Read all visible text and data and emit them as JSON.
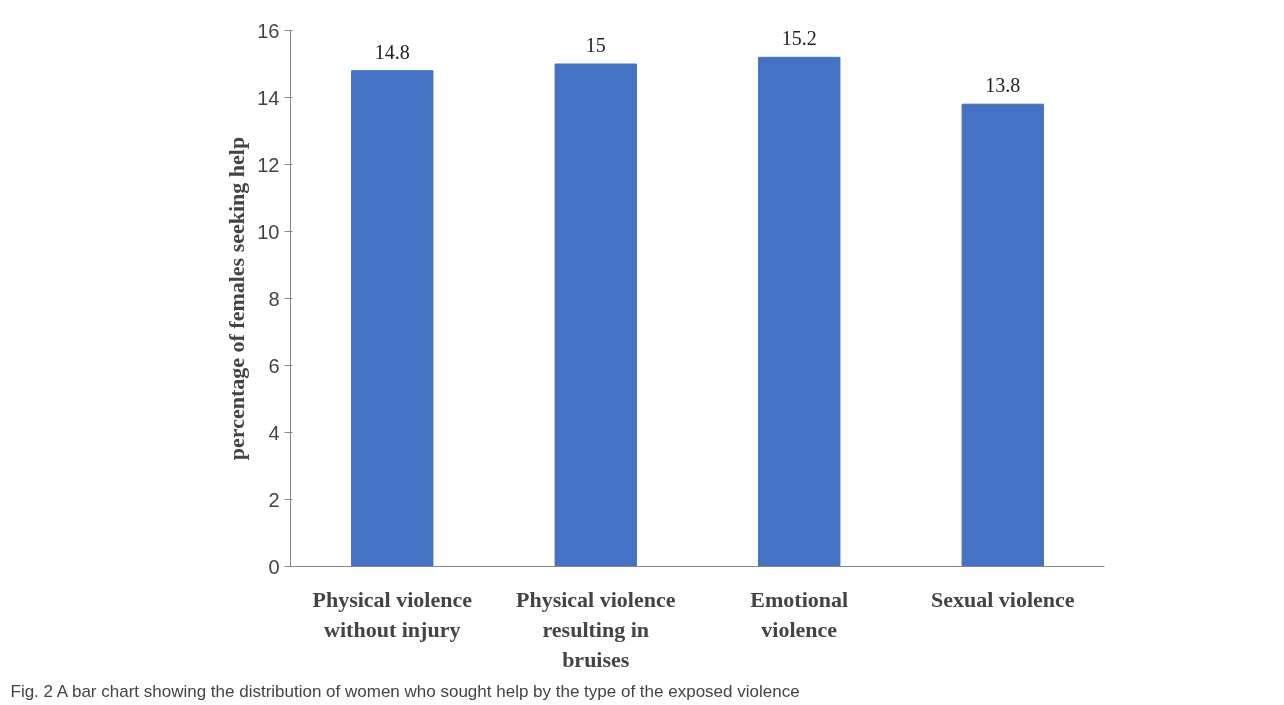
{
  "chart_data": {
    "type": "bar",
    "ylabel": "percentage of females seeking help",
    "categories": [
      "Physical violence without injury",
      "Physical violence resulting in bruises",
      "Emotional violence",
      "Sexual violence"
    ],
    "values": [
      14.8,
      15,
      15.2,
      13.8
    ],
    "color": "#4472c4",
    "ylim": [
      0,
      16
    ],
    "yticks": [
      0,
      2,
      4,
      6,
      8,
      10,
      12,
      14,
      16
    ],
    "data_labels": true,
    "annotations": [
      "Fig. 2  A bar chart showing the distribution of women who sought help by the type of the exposed violence"
    ]
  }
}
